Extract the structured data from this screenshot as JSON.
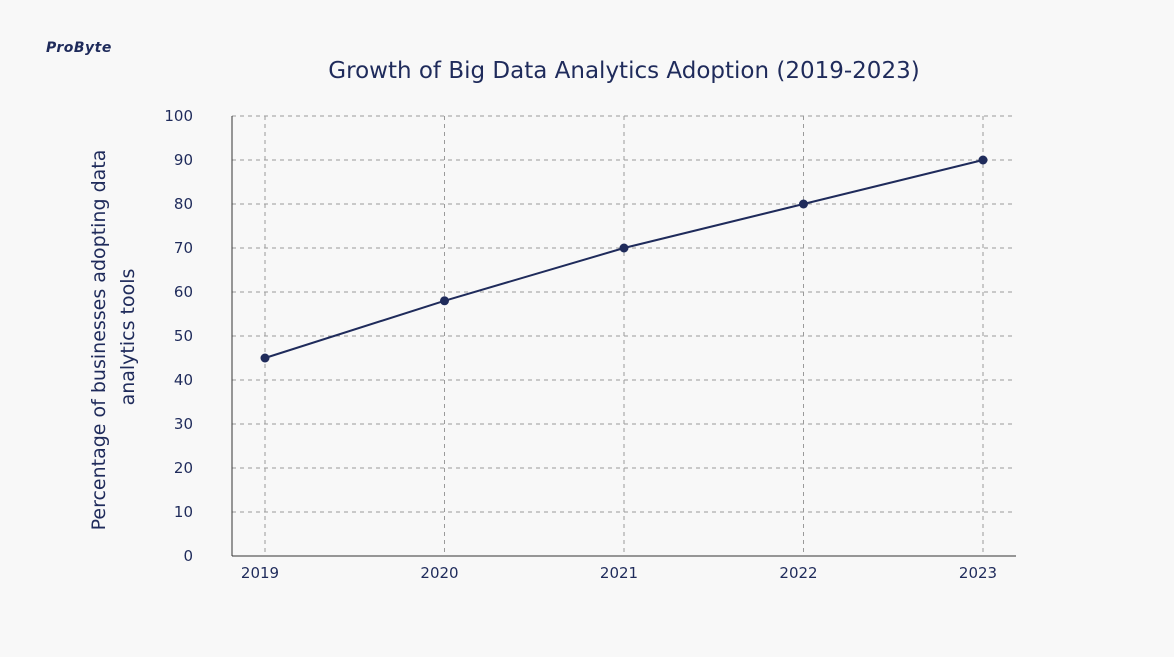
{
  "brand": {
    "logo_text": "ProByte"
  },
  "colors": {
    "background": "#f8f8f8",
    "line": "#1f2b5b",
    "grid": "#9a9a9a"
  },
  "chart_data": {
    "type": "line",
    "title": "Growth of Big Data Analytics Adoption (2019-2023)",
    "xlabel": "",
    "ylabel": "Percentage of businesses adopting data analytics tools",
    "ylabel_lines": [
      "Percentage of businesses adopting data",
      "analytics tools"
    ],
    "categories": [
      "2019",
      "2020",
      "2021",
      "2022",
      "2023"
    ],
    "values": [
      45,
      58,
      70,
      80,
      90
    ],
    "ylim": [
      0,
      100
    ],
    "yticks": [
      0,
      10,
      20,
      30,
      40,
      50,
      60,
      70,
      80,
      90,
      100
    ],
    "grid": true,
    "legend": "none"
  }
}
